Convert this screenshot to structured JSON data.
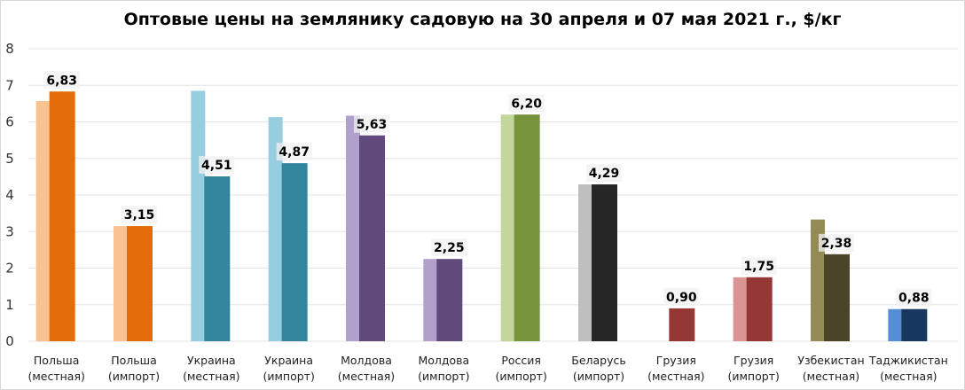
{
  "chart_data": {
    "type": "bar",
    "title": "Оптовые цены на землянику садовую на 30 апреля и 07 мая 2021 г., $/кг",
    "categories": [
      [
        "Польша",
        "(местная)"
      ],
      [
        "Польша",
        "(импорт)"
      ],
      [
        "Украина",
        "(местная)"
      ],
      [
        "Украина",
        "(импорт)"
      ],
      [
        "Молдова",
        "(местная)"
      ],
      [
        "Молдова",
        "(импорт)"
      ],
      [
        "Россия",
        "(импорт)"
      ],
      [
        "Беларусь",
        "(импорт)"
      ],
      [
        "Грузия",
        "(местная)"
      ],
      [
        "Грузия",
        "(импорт)"
      ],
      [
        "Узбекистан",
        "(местная)"
      ],
      [
        "Таджикистан",
        "(местная)"
      ]
    ],
    "series": [
      {
        "values": [
          6.57,
          3.15,
          6.85,
          6.13,
          6.17,
          2.25,
          6.2,
          4.29,
          0,
          1.75,
          3.33,
          0.88
        ],
        "colors": [
          "#f8c291",
          "#f8c291",
          "#96cddf",
          "#96cddf",
          "#b1a0cc",
          "#b1a0cc",
          "#c3d69b",
          "#bfbfbf",
          "#d99594",
          "#d99594",
          "#948a54",
          "#558ed5"
        ]
      },
      {
        "values": [
          6.83,
          3.15,
          4.51,
          4.87,
          5.63,
          2.25,
          6.2,
          4.29,
          0.9,
          1.75,
          2.38,
          0.88
        ],
        "labels": [
          "6,83",
          "3,15",
          "4,51",
          "4,87",
          "5,63",
          "2,25",
          "6,20",
          "4,29",
          "0,90",
          "1,75",
          "2,38",
          "0,88"
        ],
        "colors": [
          "#e46c0a",
          "#e46c0a",
          "#31859c",
          "#31859c",
          "#604a7b",
          "#604a7b",
          "#77933c",
          "#262626",
          "#953735",
          "#953735",
          "#4a4428",
          "#17375e"
        ]
      }
    ],
    "ylim": [
      0,
      8
    ],
    "yticks": [
      "0",
      "1",
      "2",
      "3",
      "4",
      "5",
      "6",
      "7",
      "8"
    ],
    "grid": true,
    "legend": "none"
  }
}
